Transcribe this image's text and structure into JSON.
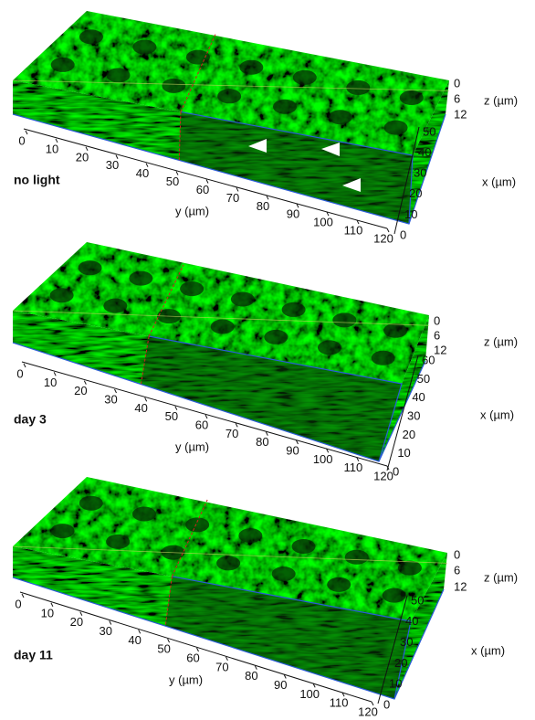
{
  "panels": [
    {
      "label": "no light",
      "y_axis": {
        "label": "y (µm)",
        "ticks": [
          0,
          10,
          20,
          30,
          40,
          50,
          60,
          70,
          80,
          90,
          100,
          110,
          120
        ]
      },
      "x_axis": {
        "label": "x (µm)",
        "ticks": [
          0,
          10,
          20,
          30,
          40,
          50
        ]
      },
      "z_axis": {
        "label": "z (µm)",
        "ticks": [
          0,
          6,
          12
        ]
      }
    },
    {
      "label": "day 3",
      "y_axis": {
        "label": "y (µm)",
        "ticks": [
          0,
          10,
          20,
          30,
          40,
          50,
          60,
          70,
          80,
          90,
          100,
          110,
          120
        ]
      },
      "x_axis": {
        "label": "x (µm)",
        "ticks": [
          0,
          10,
          20,
          30,
          40,
          50,
          60
        ]
      },
      "z_axis": {
        "label": "z (µm)",
        "ticks": [
          0,
          6,
          12
        ]
      }
    },
    {
      "label": "day 11",
      "y_axis": {
        "label": "y (µm)",
        "ticks": [
          0,
          10,
          20,
          30,
          40,
          50,
          60,
          70,
          80,
          90,
          100,
          110,
          120
        ]
      },
      "x_axis": {
        "label": "x (µm)",
        "ticks": [
          0,
          10,
          20,
          30,
          40,
          50
        ]
      },
      "z_axis": {
        "label": "z (µm)",
        "ticks": [
          0,
          6,
          12
        ]
      }
    }
  ]
}
